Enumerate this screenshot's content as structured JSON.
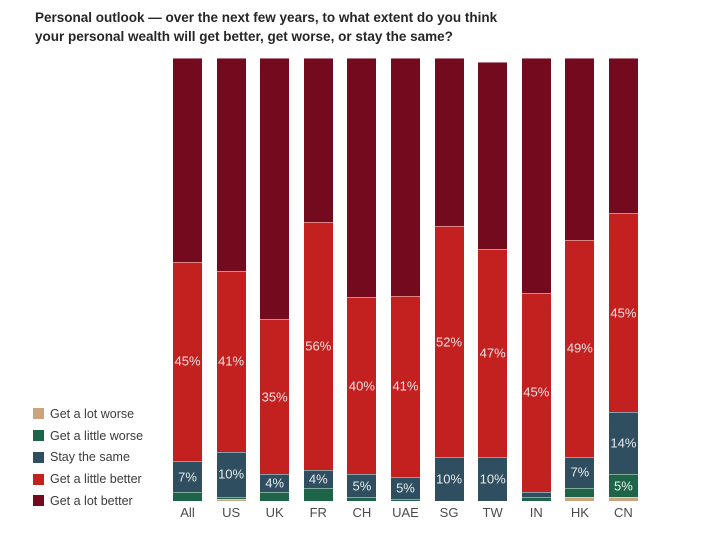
{
  "title": {
    "line1": "Personal outlook — over the next few years, to what extent do you think",
    "line2": "your personal wealth will get better, get worse, or stay the same?"
  },
  "chart_data": {
    "type": "bar",
    "stacked": true,
    "orientation": "vertical",
    "value_suffix": "%",
    "label_threshold": 4,
    "categories": [
      "All",
      "US",
      "UK",
      "FR",
      "CH",
      "UAE",
      "SG",
      "TW",
      "IN",
      "HK",
      "CN"
    ],
    "series": [
      {
        "name": "Get a lot worse",
        "color": "#cba47c",
        "label_color": "#f4ede4",
        "values": [
          0,
          0.5,
          0,
          0,
          0,
          0,
          0,
          0,
          0,
          1,
          1
        ]
      },
      {
        "name": "Get a little worse",
        "color": "#1d6449",
        "label_color": "#e9f1e7",
        "values": [
          2,
          0.5,
          2,
          3,
          1,
          0.5,
          0,
          0,
          1,
          2,
          5
        ]
      },
      {
        "name": "Stay the same",
        "color": "#2f4e5f",
        "label_color": "#e6ebee",
        "values": [
          7,
          10,
          4,
          4,
          5,
          5,
          10,
          10,
          1,
          7,
          14
        ]
      },
      {
        "name": "Get a little better",
        "color": "#c32020",
        "label_color": "#f3e3e3",
        "values": [
          45,
          41,
          35,
          56,
          40,
          41,
          52,
          47,
          45,
          49,
          45
        ]
      },
      {
        "name": "Get a lot better",
        "color": "#730a1e",
        "label_color": "#d7bcc0",
        "values": [
          46,
          48,
          59,
          37,
          54,
          54,
          38,
          42,
          53,
          41,
          35
        ]
      }
    ],
    "legend_order_top_to_bottom": [
      "Get a lot worse",
      "Get a little worse",
      "Stay the same",
      "Get a little better",
      "Get a lot better"
    ]
  },
  "legend": {
    "items": [
      {
        "label": "Get a lot worse",
        "color": "#cba47c"
      },
      {
        "label": "Get a little worse",
        "color": "#1d6449"
      },
      {
        "label": "Stay the same",
        "color": "#2f4e5f"
      },
      {
        "label": "Get a little better",
        "color": "#c32020"
      },
      {
        "label": "Get a lot better",
        "color": "#730a1e"
      }
    ]
  }
}
